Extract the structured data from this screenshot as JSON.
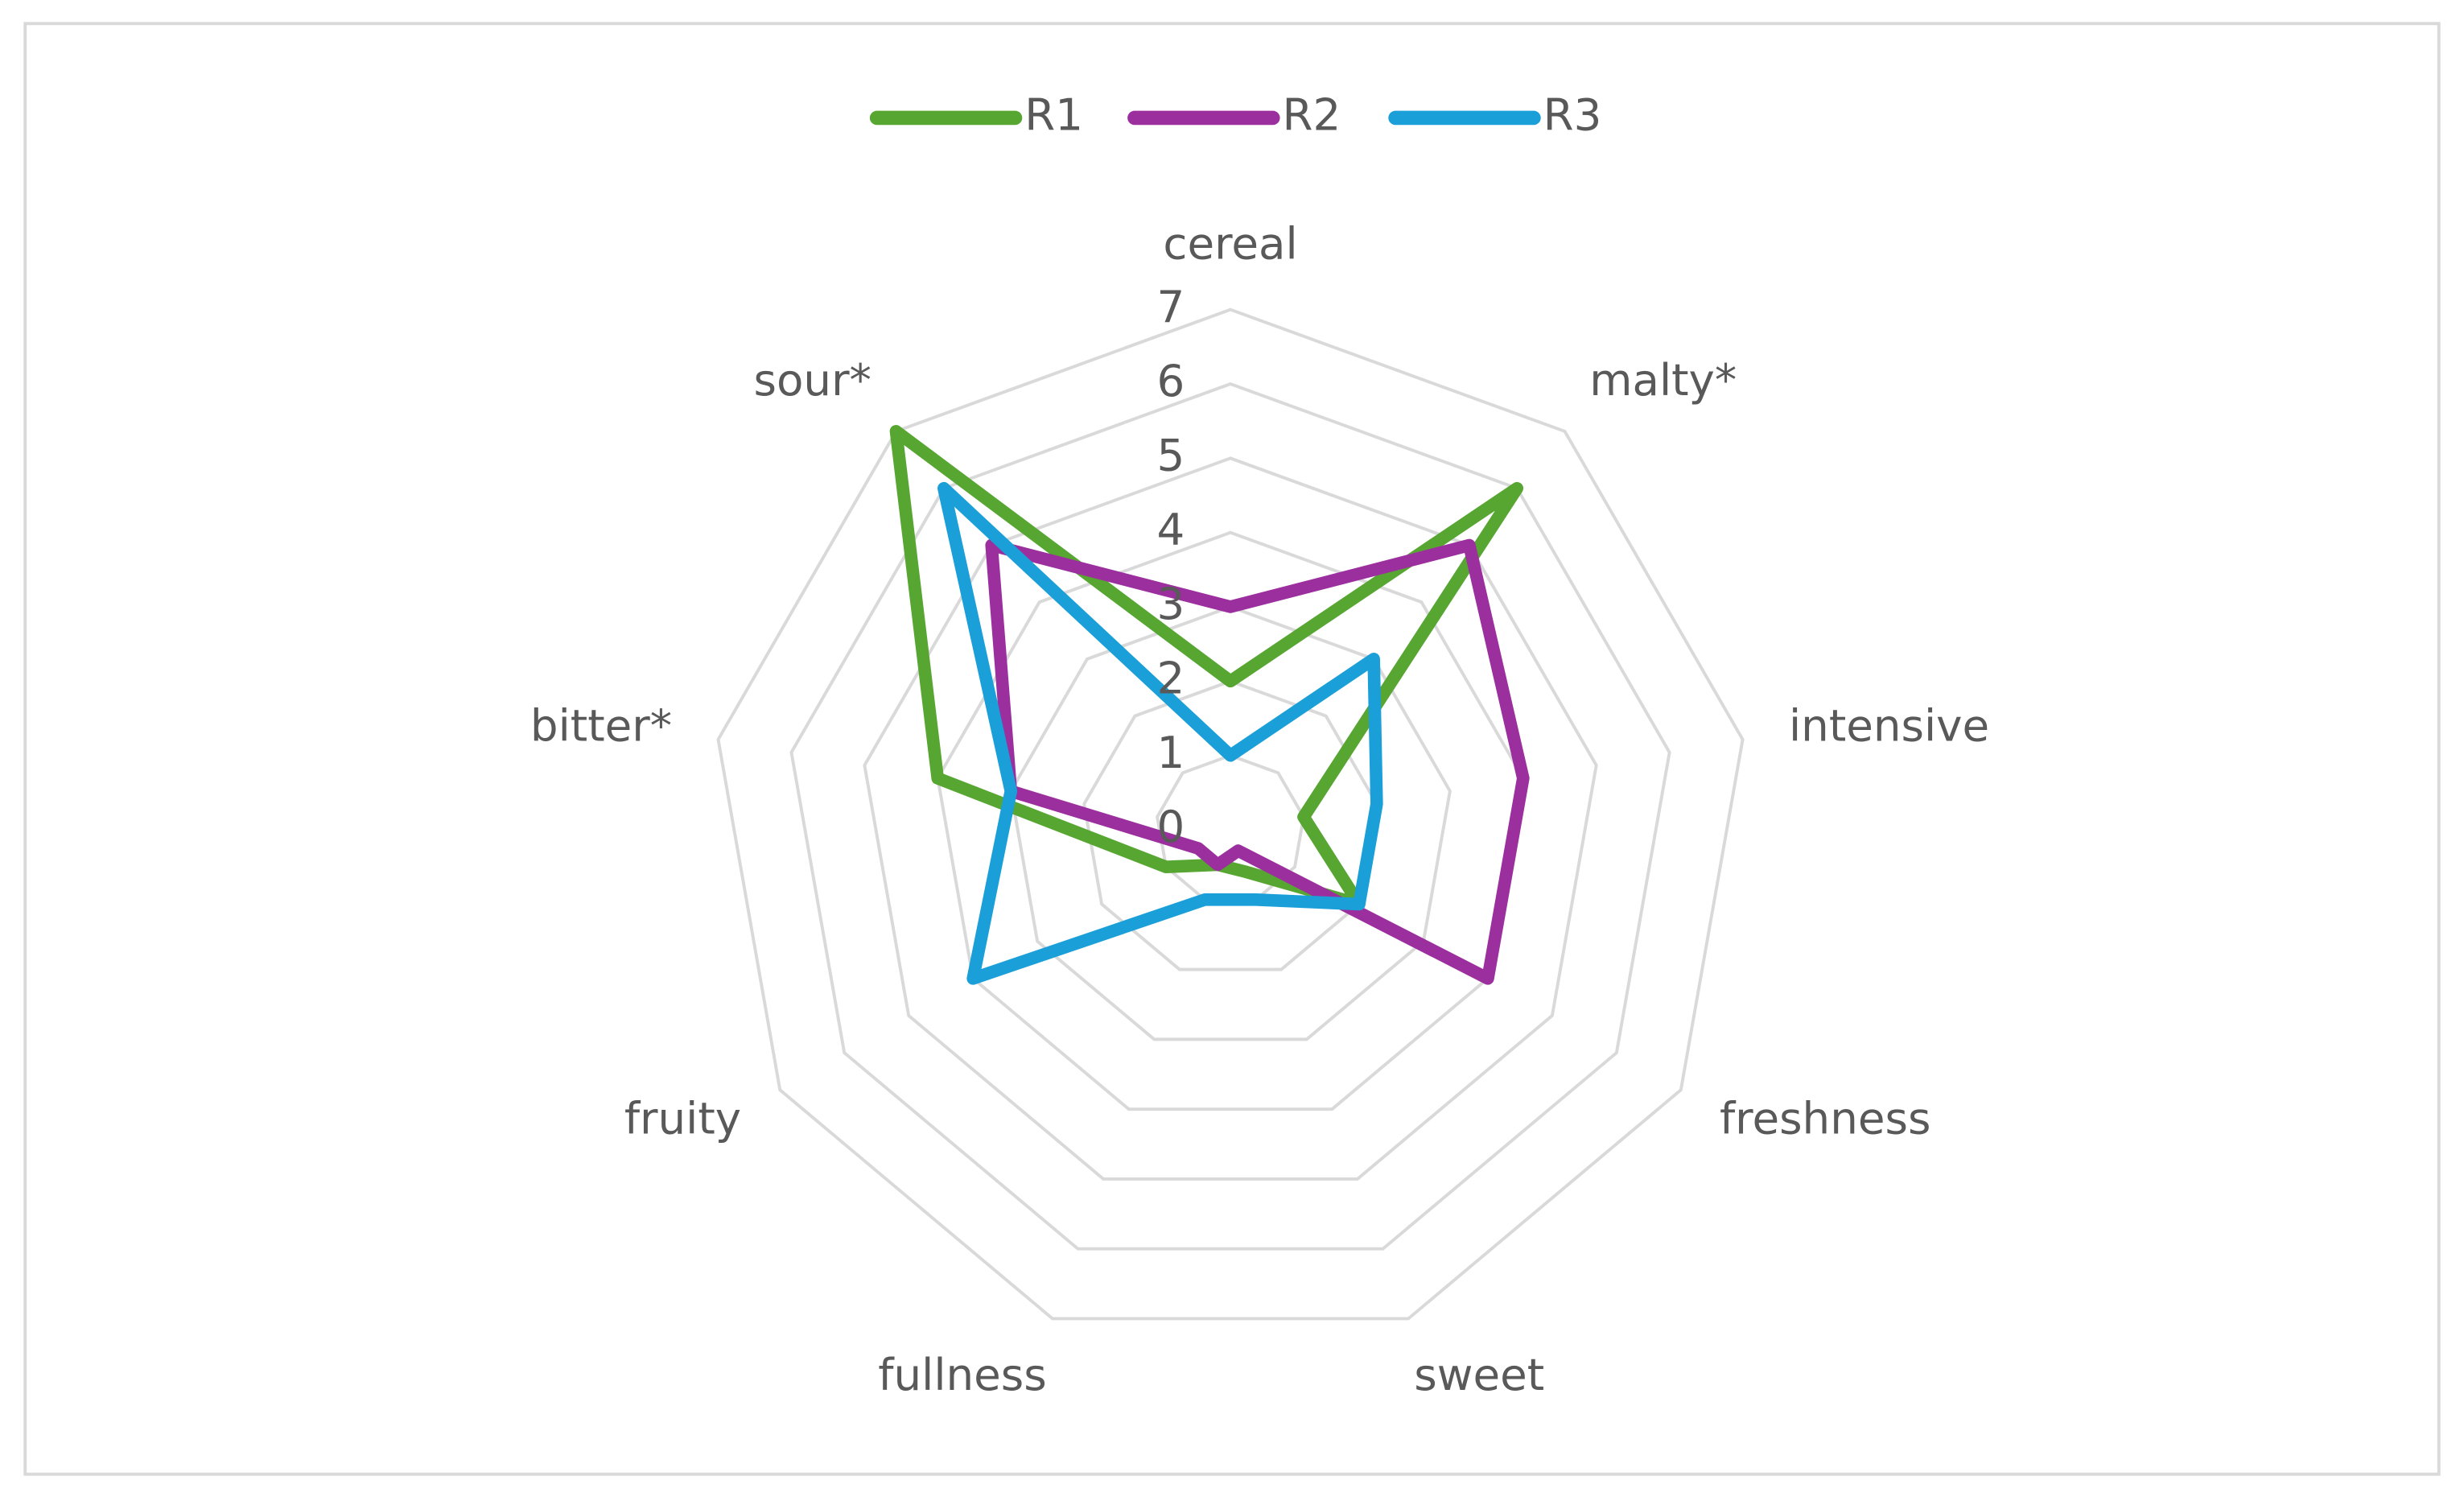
{
  "chart_data": {
    "type": "radar",
    "categories": [
      "cereal",
      "malty*",
      "intensive",
      "freshness",
      "sweet",
      "fullness",
      "fruity",
      "bitter*",
      "sour*"
    ],
    "series": [
      {
        "name": "R1",
        "color": "#57a632",
        "values": [
          2,
          6,
          1,
          2,
          0.6,
          0.5,
          1,
          4,
          7
        ]
      },
      {
        "name": "R2",
        "color": "#9c2f9e",
        "values": [
          3,
          5,
          4,
          4,
          0.3,
          0.5,
          0.5,
          3,
          5
        ]
      },
      {
        "name": "R3",
        "color": "#1a9fd9",
        "values": [
          1,
          3,
          2,
          2,
          1,
          1,
          4,
          3,
          6
        ]
      }
    ],
    "ylim": [
      0,
      7
    ],
    "yticks": [
      0,
      1,
      2,
      3,
      4,
      5,
      6,
      7
    ],
    "grid": true,
    "legend": "top"
  }
}
